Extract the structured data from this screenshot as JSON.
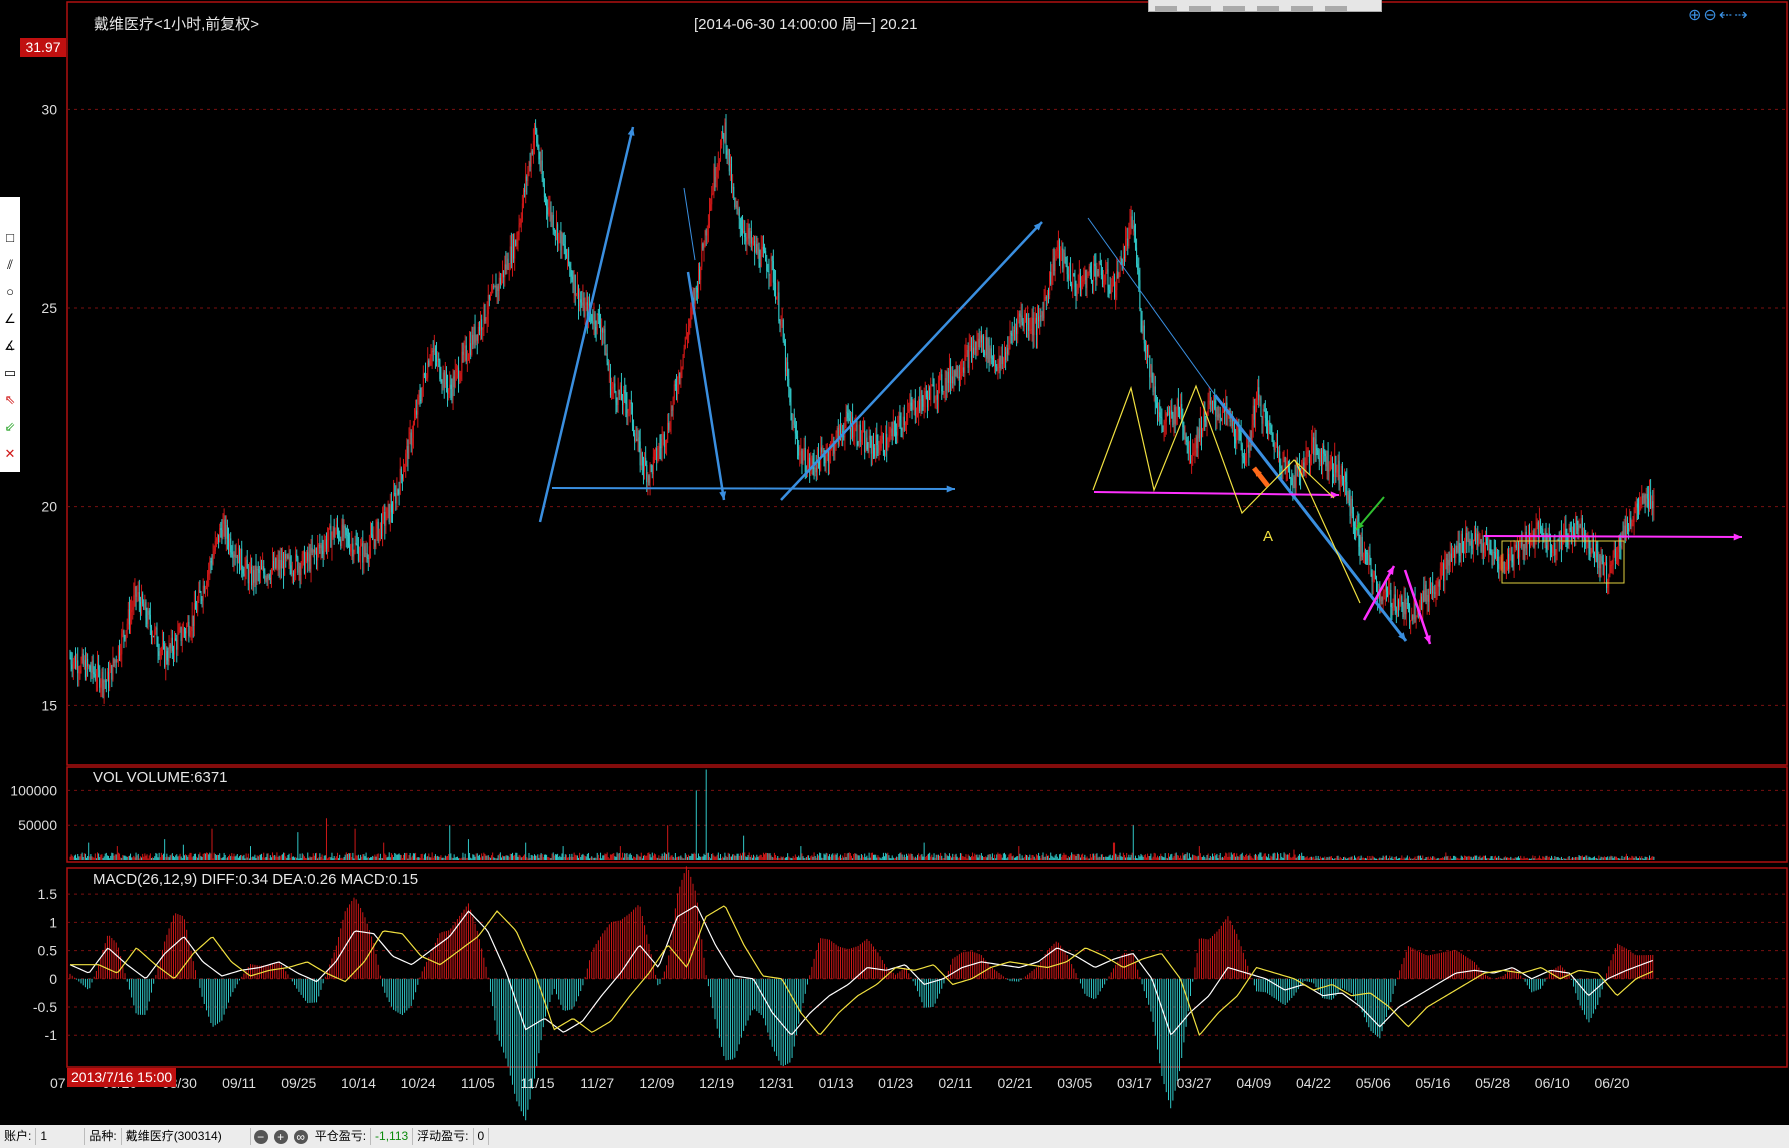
{
  "header": {
    "title": "戴维医疗<1小时,前复权>",
    "cursor_info": "[2014-06-30  14:00:00 周一]    20.21",
    "price_tag": "31.97"
  },
  "volume_panel": {
    "label": "VOL  VOLUME:6371"
  },
  "macd_panel": {
    "label": "MACD(26,12,9)  DIFF:0.34 DEA:0.26 MACD:0.15"
  },
  "cursor_date": "2013/7/16 15:00",
  "toolbar_icons": [
    "select-icon",
    "rectangle-icon",
    "parallel-lines-icon",
    "ellipse-icon",
    "pen-icon",
    "number-icon",
    "ruler-icon",
    "sell-arrow-icon",
    "buy-arrow-icon",
    "delete-icon"
  ],
  "nav_icons": [
    "zoom-in-icon",
    "zoom-out-icon",
    "scroll-left-icon",
    "scroll-right-icon"
  ],
  "status_bar": {
    "account_label": "账户:",
    "account_value": "1",
    "symbol_label": "品种:",
    "symbol_value": "戴维医疗(300314)",
    "closed_pl_label": "平仓盈亏:",
    "closed_pl_value": "-1,113",
    "float_pl_label": "浮动盈亏:",
    "float_pl_value": "0"
  },
  "colors": {
    "up": "#d01818",
    "down": "#30c8c8",
    "grid": "#7a1010",
    "blue_line": "#3a8fe0",
    "magenta_line": "#ff30ff",
    "yellow_line": "#f0e040",
    "orange_arrow": "#ff6a1a",
    "green_arrow": "#30c030"
  },
  "chart_data": [
    {
      "type": "candlestick",
      "title": "戴维医疗<1小时,前复权>",
      "ylim": [
        13.8,
        32.5
      ],
      "y_ticks": [
        15,
        20,
        25,
        30
      ],
      "x_tick_labels": [
        "07",
        "08/20",
        "08/30",
        "09/11",
        "09/25",
        "10/14",
        "10/24",
        "11/05",
        "11/15",
        "11/27",
        "12/09",
        "12/19",
        "12/31",
        "01/13",
        "01/23",
        "02/11",
        "02/21",
        "03/05",
        "03/17",
        "03/27",
        "04/09",
        "04/22",
        "05/06",
        "05/16",
        "05/28",
        "06/10",
        "06/20"
      ],
      "price_path": [
        [
          0,
          16.2
        ],
        [
          4,
          15.6
        ],
        [
          7,
          17.8
        ],
        [
          10,
          16.2
        ],
        [
          13,
          17.2
        ],
        [
          16,
          19.5
        ],
        [
          19,
          18.2
        ],
        [
          22,
          18.5
        ],
        [
          25,
          18.6
        ],
        [
          28,
          19.4
        ],
        [
          31,
          18.8
        ],
        [
          34,
          20.0
        ],
        [
          36,
          21.8
        ],
        [
          38,
          24.0
        ],
        [
          40,
          22.9
        ],
        [
          42,
          24.0
        ],
        [
          45,
          25.5
        ],
        [
          47,
          26.7
        ],
        [
          49,
          29.5
        ],
        [
          50,
          27.8
        ],
        [
          52,
          26.5
        ],
        [
          54,
          25.0
        ],
        [
          56,
          24.6
        ],
        [
          57,
          23.0
        ],
        [
          59,
          22.5
        ],
        [
          60,
          21.3
        ],
        [
          61,
          20.8
        ],
        [
          63,
          22.0
        ],
        [
          66,
          25.5
        ],
        [
          68,
          28.5
        ],
        [
          69,
          29.5
        ],
        [
          70,
          27.5
        ],
        [
          72,
          26.5
        ],
        [
          74,
          26.0
        ],
        [
          75,
          24.5
        ],
        [
          76,
          22.2
        ],
        [
          77,
          21.3
        ],
        [
          78,
          21.0
        ],
        [
          80,
          21.4
        ],
        [
          82,
          22.2
        ],
        [
          84,
          21.5
        ],
        [
          86,
          21.6
        ],
        [
          88,
          22.3
        ],
        [
          90,
          22.7
        ],
        [
          92,
          23.1
        ],
        [
          94,
          23.6
        ],
        [
          96,
          24.2
        ],
        [
          98,
          23.5
        ],
        [
          100,
          24.8
        ],
        [
          102,
          24.5
        ],
        [
          103,
          25.5
        ],
        [
          104,
          26.5
        ],
        [
          106,
          25.5
        ],
        [
          108,
          26.0
        ],
        [
          110,
          25.5
        ],
        [
          112,
          27.2
        ],
        [
          113,
          24.5
        ],
        [
          115,
          22.0
        ],
        [
          117,
          22.5
        ],
        [
          118,
          21.3
        ],
        [
          120,
          22.5
        ],
        [
          122,
          22.3
        ],
        [
          124,
          21.2
        ],
        [
          125,
          22.8
        ],
        [
          126,
          22.1
        ],
        [
          128,
          21.0
        ],
        [
          129,
          20.7
        ],
        [
          131,
          21.5
        ],
        [
          132,
          21.3
        ],
        [
          134,
          20.8
        ],
        [
          136,
          19.0
        ],
        [
          138,
          17.8
        ],
        [
          140,
          17.6
        ],
        [
          141,
          17.3
        ],
        [
          143,
          17.8
        ],
        [
          145,
          18.5
        ],
        [
          147,
          19.2
        ],
        [
          149,
          19.0
        ],
        [
          151,
          18.5
        ],
        [
          153,
          19.1
        ],
        [
          155,
          19.4
        ],
        [
          156,
          19.0
        ],
        [
          158,
          19.3
        ],
        [
          159,
          19.6
        ],
        [
          161,
          18.7
        ],
        [
          162,
          18.2
        ],
        [
          163,
          19.0
        ],
        [
          164,
          19.5
        ],
        [
          165,
          19.9
        ],
        [
          167,
          20.3
        ]
      ],
      "series": [
        {
          "name": "",
          "type": "trendline",
          "color": "#3a8fe0",
          "points": [
            [
              2013.82,
              19.8
            ],
            [
              2013.83,
              29.7
            ]
          ]
        }
      ]
    },
    {
      "type": "bar",
      "title": "VOL  VOLUME:6371",
      "ylim": [
        0,
        125000
      ],
      "y_ticks": [
        50000,
        100000
      ],
      "spikes": [
        [
          2,
          25000
        ],
        [
          5,
          20000
        ],
        [
          10,
          30000
        ],
        [
          12,
          22000
        ],
        [
          15,
          45000
        ],
        [
          19,
          20000
        ],
        [
          24,
          40000
        ],
        [
          27,
          60000
        ],
        [
          30,
          45000
        ],
        [
          33,
          25000
        ],
        [
          40,
          50000
        ],
        [
          42,
          30000
        ],
        [
          48,
          25000
        ],
        [
          52,
          20000
        ],
        [
          58,
          20000
        ],
        [
          63,
          50000
        ],
        [
          66,
          100000
        ],
        [
          67,
          130000
        ],
        [
          71,
          35000
        ],
        [
          77,
          20000
        ],
        [
          90,
          25000
        ],
        [
          100,
          20000
        ],
        [
          110,
          25000
        ],
        [
          112,
          50000
        ],
        [
          119,
          20000
        ],
        [
          129,
          15000
        ],
        [
          145,
          18000
        ],
        [
          159,
          12000
        ],
        [
          164,
          15000
        ]
      ]
    },
    {
      "type": "line",
      "title": "MACD(26,12,9)  DIFF:0.34 DEA:0.26 MACD:0.15",
      "ylim": [
        -1.35,
        1.75
      ],
      "y_ticks": [
        -1,
        -0.5,
        0,
        0.5,
        1,
        1.5
      ],
      "diff": [
        [
          0,
          0.25
        ],
        [
          2,
          0.1
        ],
        [
          4,
          0.55
        ],
        [
          6,
          0.25
        ],
        [
          8,
          0.0
        ],
        [
          10,
          0.45
        ],
        [
          12,
          0.75
        ],
        [
          14,
          0.3
        ],
        [
          16,
          0.05
        ],
        [
          18,
          0.15
        ],
        [
          20,
          0.2
        ],
        [
          22,
          0.3
        ],
        [
          24,
          0.1
        ],
        [
          26,
          -0.05
        ],
        [
          28,
          0.3
        ],
        [
          30,
          0.85
        ],
        [
          32,
          0.8
        ],
        [
          34,
          0.4
        ],
        [
          36,
          0.25
        ],
        [
          38,
          0.5
        ],
        [
          40,
          0.75
        ],
        [
          42,
          1.2
        ],
        [
          44,
          0.85
        ],
        [
          46,
          0.1
        ],
        [
          48,
          -0.9
        ],
        [
          50,
          -0.7
        ],
        [
          52,
          -0.95
        ],
        [
          54,
          -0.75
        ],
        [
          56,
          -0.3
        ],
        [
          58,
          0.1
        ],
        [
          60,
          0.6
        ],
        [
          62,
          0.2
        ],
        [
          64,
          1.1
        ],
        [
          66,
          1.3
        ],
        [
          68,
          0.6
        ],
        [
          70,
          0.05
        ],
        [
          72,
          0.0
        ],
        [
          74,
          -0.6
        ],
        [
          76,
          -1.0
        ],
        [
          78,
          -0.6
        ],
        [
          80,
          -0.3
        ],
        [
          82,
          -0.1
        ],
        [
          84,
          0.2
        ],
        [
          86,
          0.15
        ],
        [
          88,
          0.25
        ],
        [
          90,
          -0.1
        ],
        [
          92,
          0.0
        ],
        [
          94,
          0.2
        ],
        [
          96,
          0.3
        ],
        [
          98,
          0.25
        ],
        [
          100,
          0.2
        ],
        [
          102,
          0.3
        ],
        [
          104,
          0.55
        ],
        [
          106,
          0.4
        ],
        [
          108,
          0.2
        ],
        [
          110,
          0.35
        ],
        [
          112,
          0.45
        ],
        [
          114,
          0.0
        ],
        [
          116,
          -1.0
        ],
        [
          118,
          -0.6
        ],
        [
          120,
          -0.3
        ],
        [
          122,
          0.2
        ],
        [
          124,
          0.1
        ],
        [
          126,
          0.0
        ],
        [
          128,
          -0.2
        ],
        [
          130,
          -0.1
        ],
        [
          132,
          -0.3
        ],
        [
          134,
          -0.25
        ],
        [
          136,
          -0.5
        ],
        [
          138,
          -0.85
        ],
        [
          140,
          -0.5
        ],
        [
          142,
          -0.3
        ],
        [
          144,
          -0.1
        ],
        [
          146,
          0.1
        ],
        [
          148,
          0.15
        ],
        [
          150,
          0.1
        ],
        [
          152,
          0.2
        ],
        [
          154,
          0.0
        ],
        [
          156,
          0.15
        ],
        [
          158,
          0.1
        ],
        [
          160,
          -0.3
        ],
        [
          162,
          0.0
        ],
        [
          164,
          0.15
        ],
        [
          167,
          0.34
        ]
      ],
      "dea_lag": 3
    }
  ]
}
